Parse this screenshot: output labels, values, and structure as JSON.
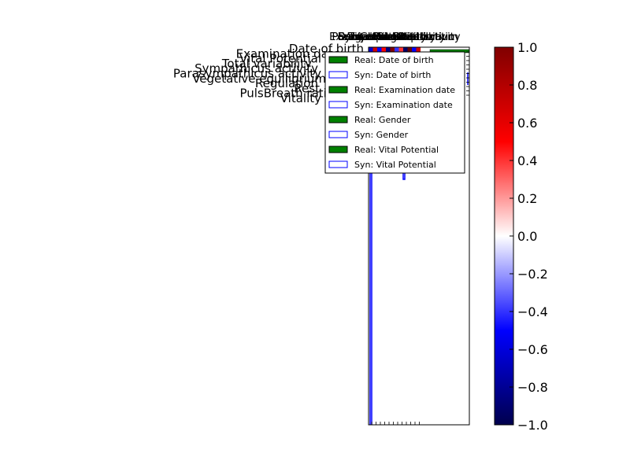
{
  "chart_data": {
    "type": "heatmap",
    "title": "",
    "xlabel": "",
    "ylabel": "",
    "row_labels": [
      "Date of birth",
      "Examination date",
      "Vital Potential",
      "Total variability",
      "Sympathicus activity",
      "Parasympathicus activity",
      "Vegetative equilibrium",
      "Regulation",
      "Rest",
      "PulsBreath ratio",
      "Vitality"
    ],
    "column_labels": [
      "Date of birth",
      "Examination date",
      "Gender",
      "Vital Potential",
      "Total variability",
      "Sympathicus activity",
      "Parasympathicus activity",
      "Vegetative equilibrium",
      "Regulation",
      "Rest",
      "PulsBreath ratio",
      "Vitality"
    ],
    "colorbar": {
      "colormap": "seismic",
      "vmin": -1.0,
      "vmax": 1.0,
      "ticks": [
        "1.0",
        "0.8",
        "0.6",
        "0.4",
        "0.2",
        "0.0",
        "−0.2",
        "−0.4",
        "−0.6",
        "−0.8",
        "−1.0"
      ]
    },
    "legend": {
      "placement": "upper-right",
      "entries": [
        {
          "label": "Real: Date of birth",
          "style": "filled",
          "color": "#008000"
        },
        {
          "label": "Syn: Date of birth",
          "style": "outline",
          "color": "#0000ff"
        },
        {
          "label": "Real: Examination date",
          "style": "filled",
          "color": "#008000"
        },
        {
          "label": "Syn: Examination date",
          "style": "outline",
          "color": "#0000ff"
        },
        {
          "label": "Real: Gender",
          "style": "filled",
          "color": "#008000"
        },
        {
          "label": "Syn: Gender",
          "style": "outline",
          "color": "#0000ff"
        },
        {
          "label": "Real: Vital Potential",
          "style": "filled",
          "color": "#008000"
        },
        {
          "label": "Syn: Vital Potential",
          "style": "outline",
          "color": "#0000ff"
        }
      ]
    },
    "series": [
      {
        "name": "Syn: Date of birth",
        "type": "step-outline",
        "color": "#0000ff",
        "relative_heights": [
          1.0,
          0,
          0,
          0,
          0,
          0,
          0,
          0,
          0,
          0
        ]
      },
      {
        "name": "Syn: Gender",
        "type": "step-outline",
        "color": "#0000ff",
        "relative_heights": [
          0,
          0,
          0,
          0,
          0,
          0,
          0.33,
          0,
          0,
          0
        ]
      },
      {
        "name": "Real: Vital Potential",
        "type": "bar",
        "color": "#008000",
        "relative_heights": [
          0.05,
          0.05,
          0.05,
          0.05,
          0.05,
          0.05,
          0.05,
          0.05,
          0.05,
          0.05
        ]
      }
    ],
    "grid": false
  }
}
